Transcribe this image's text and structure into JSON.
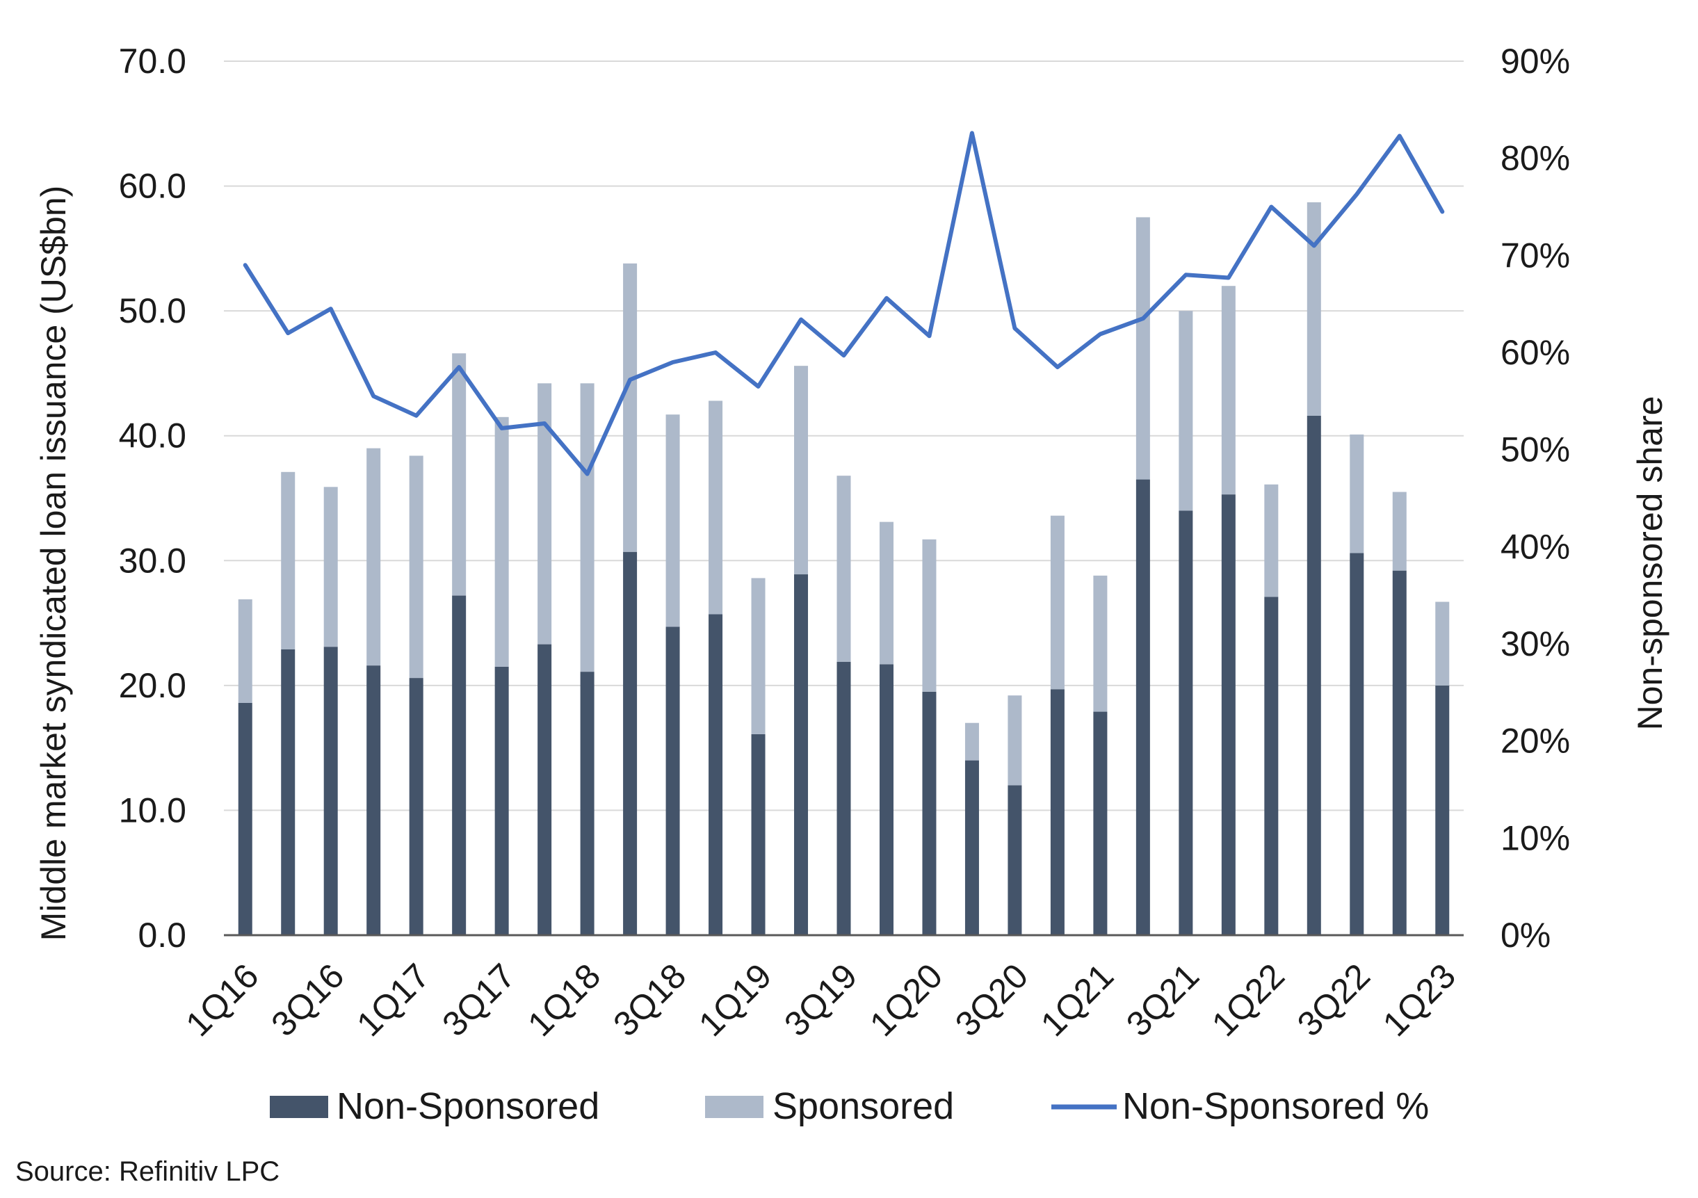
{
  "chart_data": {
    "type": "bar",
    "stacked": true,
    "categories": [
      "1Q16",
      "2Q16",
      "3Q16",
      "4Q16",
      "1Q17",
      "2Q17",
      "3Q17",
      "4Q17",
      "1Q18",
      "2Q18",
      "3Q18",
      "4Q18",
      "1Q19",
      "2Q19",
      "3Q19",
      "4Q19",
      "1Q20",
      "2Q20",
      "3Q20",
      "4Q20",
      "1Q21",
      "2Q21",
      "3Q21",
      "4Q21",
      "1Q22",
      "2Q22",
      "3Q22",
      "4Q22",
      "1Q23"
    ],
    "tick_labels": [
      "1Q16",
      "3Q16",
      "1Q17",
      "3Q17",
      "1Q18",
      "3Q18",
      "1Q19",
      "3Q19",
      "1Q20",
      "3Q20",
      "1Q21",
      "3Q21",
      "1Q22",
      "3Q22",
      "1Q23"
    ],
    "series": [
      {
        "name": "Non-Sponsored",
        "axis": "left",
        "kind": "bar",
        "color": "#44546a",
        "values": [
          18.6,
          22.9,
          23.1,
          21.6,
          20.6,
          27.2,
          21.5,
          23.3,
          21.1,
          30.7,
          24.7,
          25.7,
          16.1,
          28.9,
          21.9,
          21.7,
          19.5,
          14.0,
          12.0,
          19.7,
          17.9,
          36.5,
          34.0,
          35.3,
          27.1,
          41.6,
          30.6,
          29.2,
          20.0
        ]
      },
      {
        "name": "Sponsored",
        "axis": "left",
        "kind": "bar",
        "color": "#adb9ca",
        "values": [
          8.3,
          14.2,
          12.8,
          17.4,
          17.8,
          19.4,
          20.0,
          20.9,
          23.1,
          23.1,
          17.0,
          17.1,
          12.5,
          16.7,
          14.9,
          11.4,
          12.2,
          3.0,
          7.2,
          13.9,
          10.9,
          21.0,
          16.0,
          16.7,
          9.0,
          17.1,
          9.5,
          6.3,
          6.7
        ]
      },
      {
        "name": "Non-Sponsored %",
        "axis": "right",
        "kind": "line",
        "color": "#4472c4",
        "values": [
          0.69,
          0.62,
          0.645,
          0.555,
          0.535,
          0.585,
          0.522,
          0.527,
          0.475,
          0.572,
          0.59,
          0.6,
          0.565,
          0.634,
          0.597,
          0.656,
          0.617,
          0.826,
          0.625,
          0.585,
          0.619,
          0.635,
          0.68,
          0.677,
          0.75,
          0.71,
          0.763,
          0.823,
          0.745
        ]
      }
    ],
    "left_axis": {
      "label": "Middle market syndicated loan issuance (US$bn)",
      "ylim": [
        0,
        70
      ],
      "ticks": [
        0,
        10,
        20,
        30,
        40,
        50,
        60,
        70
      ],
      "tick_labels": [
        "0.0",
        "10.0",
        "20.0",
        "30.0",
        "40.0",
        "50.0",
        "60.0",
        "70.0"
      ]
    },
    "right_axis": {
      "label": "Non-sponsored share",
      "ylim": [
        0,
        0.9
      ],
      "ticks": [
        0,
        0.1,
        0.2,
        0.3,
        0.4,
        0.5,
        0.6,
        0.7,
        0.8,
        0.9
      ],
      "tick_labels": [
        "0%",
        "10%",
        "20%",
        "30%",
        "40%",
        "50%",
        "60%",
        "70%",
        "80%",
        "90%"
      ]
    },
    "grid": true,
    "legend_position": "bottom",
    "source": "Source: Refinitiv LPC"
  }
}
